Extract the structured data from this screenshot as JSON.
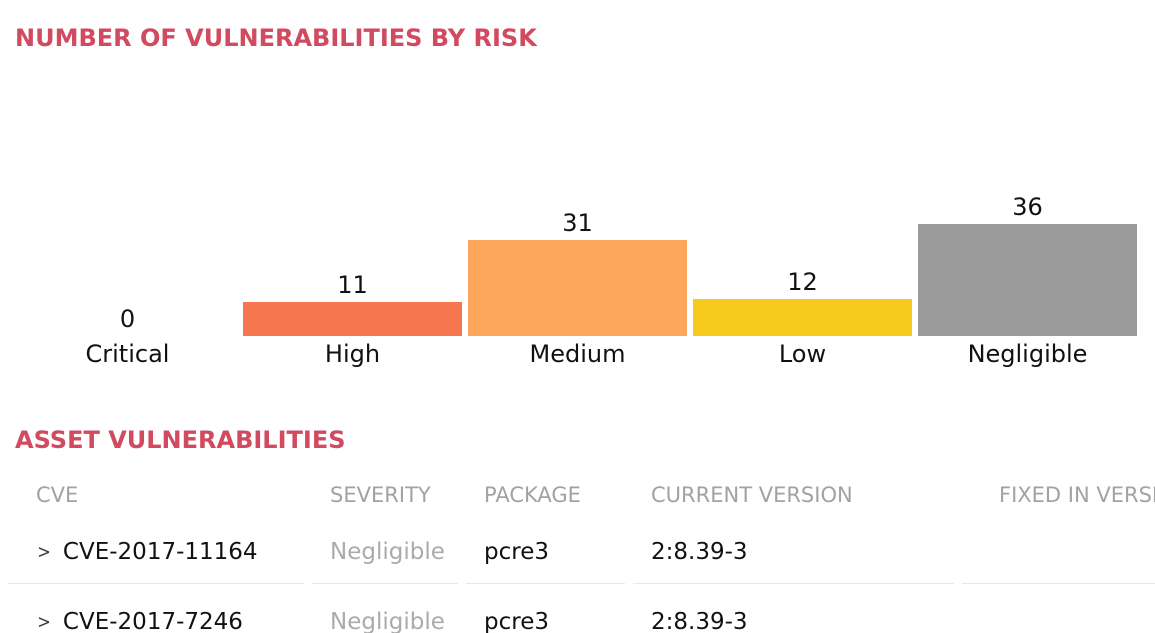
{
  "colors": {
    "accent_title": "#d14a60",
    "bar_high": "#f5764f",
    "bar_medium": "#fba65b",
    "bar_low": "#f6ca1c",
    "bar_negligible": "#9b9b9b",
    "value_label": "#111111",
    "table_header_gray": "#a2a2a2",
    "severity_gray": "#ababab"
  },
  "icons": {
    "row_expand": ">"
  },
  "chart_section": {
    "title": "NUMBER OF VULNERABILITIES BY RISK"
  },
  "chart_data": {
    "type": "bar",
    "title": "NUMBER OF VULNERABILITIES BY RISK",
    "categories": [
      "Critical",
      "High",
      "Medium",
      "Low",
      "Negligible"
    ],
    "values": [
      0,
      11,
      31,
      12,
      36
    ],
    "bar_colors": [
      "",
      "#f5764f",
      "#fba65b",
      "#f6ca1c",
      "#9b9b9b"
    ],
    "value_labels_shown": true,
    "xlabel": "",
    "ylabel": "",
    "ylim": [
      0,
      40
    ],
    "grid": false,
    "legend": "none"
  },
  "table_section": {
    "title": "ASSET VULNERABILITIES",
    "columns": [
      "CVE",
      "SEVERITY",
      "PACKAGE",
      "CURRENT VERSION",
      "FIXED IN VERSION"
    ],
    "rows": [
      {
        "cve": "CVE-2017-11164",
        "severity": "Negligible",
        "package": "pcre3",
        "current_version": "2:8.39-3",
        "fixed_in_version": ""
      },
      {
        "cve": "CVE-2017-7246",
        "severity": "Negligible",
        "package": "pcre3",
        "current_version": "2:8.39-3",
        "fixed_in_version": ""
      }
    ]
  }
}
